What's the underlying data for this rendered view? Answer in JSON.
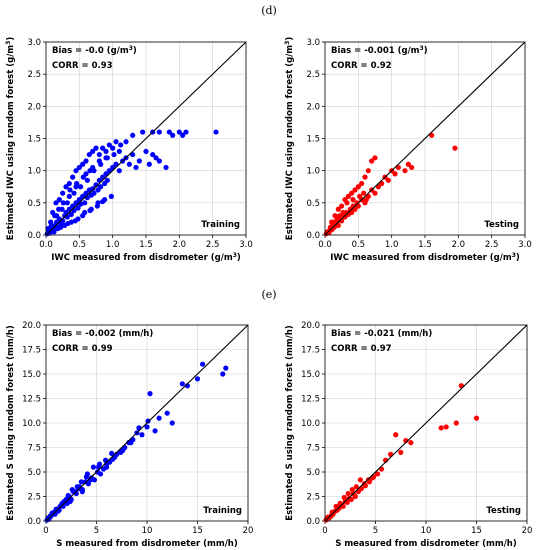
{
  "panel_labels": [
    "(d)",
    "(e)"
  ],
  "chart_data": [
    {
      "type": "scatter",
      "xlabel": "IWC measured from disdrometer (g/m",
      "ylabel": "Estimated IWC using random forest (g/m",
      "unit_sup": "3",
      "unit_close": ")",
      "xlim": [
        0,
        3.0
      ],
      "ylim": [
        0,
        3.0
      ],
      "xticks": [
        "0.0",
        "0.5",
        "1.0",
        "1.5",
        "2.0",
        "2.5",
        "3.0"
      ],
      "yticks": [
        "0.0",
        "0.5",
        "1.0",
        "1.5",
        "2.0",
        "2.5",
        "3.0"
      ],
      "bias_text": "Bias = -0.0 (g/m",
      "corr_text": "CORR = 0.93",
      "tag": "Training",
      "color": "#0000ff",
      "grid": true,
      "one_to_one_line": true,
      "x": [
        0.02,
        0.04,
        0.05,
        0.06,
        0.08,
        0.1,
        0.12,
        0.14,
        0.16,
        0.18,
        0.2,
        0.22,
        0.25,
        0.28,
        0.3,
        0.32,
        0.35,
        0.38,
        0.4,
        0.42,
        0.45,
        0.48,
        0.5,
        0.52,
        0.55,
        0.58,
        0.6,
        0.62,
        0.65,
        0.68,
        0.7,
        0.72,
        0.75,
        0.78,
        0.8,
        0.82,
        0.85,
        0.88,
        0.9,
        0.92,
        0.95,
        1.0,
        1.05,
        1.1,
        1.15,
        1.2,
        1.25,
        1.3,
        1.35,
        1.4,
        1.5,
        1.55,
        1.6,
        1.65,
        1.7,
        1.8,
        1.85,
        1.9,
        2.0,
        2.05,
        2.1,
        2.55,
        0.1,
        0.15,
        0.2,
        0.25,
        0.3,
        0.35,
        0.4,
        0.45,
        0.5,
        0.55,
        0.6,
        0.65,
        0.7,
        0.75,
        0.8,
        0.85,
        0.9,
        0.95,
        1.0,
        1.05,
        0.12,
        0.18,
        0.28,
        0.38,
        0.48,
        0.58,
        0.68,
        0.78,
        0.88,
        0.98,
        0.08,
        0.16,
        0.24,
        0.32,
        0.42,
        0.52,
        0.62,
        0.72,
        0.82,
        0.92,
        1.02,
        1.12,
        0.05,
        0.11,
        0.22,
        0.33,
        0.44,
        0.55,
        0.66,
        0.77,
        0.85,
        0.35,
        0.45,
        0.6,
        0.7,
        0.8,
        0.9,
        1.1,
        1.2,
        1.3,
        1.45,
        1.6,
        1.7,
        0.03,
        0.07,
        0.13,
        0.19,
        0.26,
        0.36,
        0.46,
        0.56,
        0.66
      ],
      "y": [
        0.02,
        0.05,
        0.08,
        0.04,
        0.1,
        0.12,
        0.08,
        0.15,
        0.2,
        0.12,
        0.25,
        0.18,
        0.22,
        0.3,
        0.35,
        0.28,
        0.4,
        0.32,
        0.45,
        0.38,
        0.5,
        0.42,
        0.55,
        0.48,
        0.6,
        0.5,
        0.65,
        0.58,
        0.7,
        0.62,
        0.72,
        0.65,
        0.78,
        0.7,
        0.85,
        0.75,
        0.9,
        0.8,
        0.95,
        0.85,
        1.0,
        1.05,
        1.1,
        1.0,
        1.15,
        1.2,
        1.1,
        1.25,
        1.05,
        1.15,
        1.3,
        1.1,
        1.25,
        1.2,
        1.15,
        1.05,
        1.6,
        1.55,
        1.6,
        1.55,
        1.6,
        1.6,
        0.35,
        0.5,
        0.55,
        0.65,
        0.75,
        0.8,
        0.9,
        1.0,
        1.05,
        1.1,
        1.15,
        1.25,
        1.3,
        1.35,
        1.25,
        1.35,
        1.3,
        1.4,
        1.35,
        1.45,
        0.05,
        0.1,
        0.15,
        0.2,
        0.25,
        0.35,
        0.4,
        0.5,
        0.55,
        0.6,
        0.15,
        0.3,
        0.4,
        0.5,
        0.65,
        0.75,
        0.85,
        1.0,
        1.1,
        1.2,
        1.25,
        1.4,
        0.03,
        0.08,
        0.12,
        0.18,
        0.22,
        0.3,
        0.38,
        0.45,
        0.52,
        0.6,
        0.75,
        0.95,
        1.05,
        1.15,
        1.2,
        1.3,
        1.45,
        1.55,
        1.6,
        1.6,
        1.6,
        0.1,
        0.2,
        0.3,
        0.4,
        0.5,
        0.7,
        0.8,
        0.9,
        1.0
      ]
    },
    {
      "type": "scatter",
      "xlabel": "IWC measured from disdrometer (g/m",
      "ylabel": "Estimated IWC using random forest (g/m",
      "unit_sup": "3",
      "unit_close": ")",
      "xlim": [
        0,
        3.0
      ],
      "ylim": [
        0,
        3.0
      ],
      "xticks": [
        "0.0",
        "0.5",
        "1.0",
        "1.5",
        "2.0",
        "2.5",
        "3.0"
      ],
      "yticks": [
        "0.0",
        "0.5",
        "1.0",
        "1.5",
        "2.0",
        "2.5",
        "3.0"
      ],
      "bias_text": "Bias = -0.001 (g/m",
      "corr_text": "CORR = 0.92",
      "tag": "Testing",
      "color": "#ff0000",
      "grid": true,
      "one_to_one_line": true,
      "x": [
        0.02,
        0.04,
        0.06,
        0.08,
        0.1,
        0.12,
        0.14,
        0.16,
        0.18,
        0.2,
        0.22,
        0.25,
        0.28,
        0.3,
        0.32,
        0.35,
        0.38,
        0.4,
        0.42,
        0.45,
        0.48,
        0.5,
        0.55,
        0.6,
        0.65,
        0.7,
        0.75,
        0.8,
        0.85,
        0.9,
        0.95,
        1.0,
        1.05,
        1.1,
        1.2,
        1.25,
        1.3,
        1.6,
        1.95,
        0.3,
        0.35,
        0.4,
        0.45,
        0.5,
        0.55,
        0.6,
        0.65,
        0.7,
        0.75,
        0.1,
        0.15,
        0.2,
        0.25,
        0.05,
        0.08,
        0.12,
        0.18,
        0.22,
        0.27,
        0.33,
        0.42,
        0.52,
        0.58,
        0.62
      ],
      "y": [
        0.02,
        0.05,
        0.04,
        0.1,
        0.08,
        0.15,
        0.12,
        0.18,
        0.2,
        0.15,
        0.25,
        0.22,
        0.3,
        0.28,
        0.35,
        0.32,
        0.4,
        0.35,
        0.45,
        0.4,
        0.5,
        0.45,
        0.55,
        0.5,
        0.6,
        0.7,
        0.65,
        0.75,
        0.8,
        0.9,
        0.85,
        1.0,
        0.95,
        1.05,
        1.0,
        1.1,
        1.05,
        1.55,
        1.35,
        0.55,
        0.6,
        0.65,
        0.7,
        0.75,
        0.8,
        0.9,
        1.0,
        1.15,
        1.2,
        0.2,
        0.3,
        0.4,
        0.45,
        0.05,
        0.12,
        0.2,
        0.25,
        0.3,
        0.35,
        0.5,
        0.55,
        0.6,
        0.65,
        0.55
      ]
    },
    {
      "type": "scatter",
      "xlabel": "S measured from disdrometer (mm/h)",
      "ylabel": "Estimated S using random forest (mm/h)",
      "unit_sup": "",
      "unit_close": "",
      "xlim": [
        0,
        20
      ],
      "ylim": [
        0,
        20.0
      ],
      "xticks": [
        "0",
        "5",
        "10",
        "15",
        "20"
      ],
      "yticks": [
        "0.0",
        "2.5",
        "5.0",
        "7.5",
        "10.0",
        "12.5",
        "15.0",
        "17.5",
        "20.0"
      ],
      "bias_text": "Bias = -0.002 (mm/h)",
      "corr_text": "CORR = 0.99",
      "tag": "Training",
      "color": "#0000ff",
      "grid": true,
      "one_to_one_line": true,
      "x": [
        0.1,
        0.2,
        0.3,
        0.5,
        0.7,
        0.9,
        1.1,
        1.3,
        1.5,
        1.7,
        1.9,
        2.1,
        2.3,
        2.5,
        2.7,
        3.0,
        3.3,
        3.6,
        3.9,
        4.2,
        4.5,
        4.8,
        5.1,
        5.4,
        5.7,
        6.0,
        6.3,
        6.6,
        7.0,
        7.4,
        7.8,
        8.2,
        8.6,
        9.0,
        9.5,
        10.0,
        10.3,
        10.8,
        11.2,
        12.0,
        12.5,
        13.5,
        14.0,
        15.0,
        15.5,
        17.5,
        17.8,
        0.4,
        0.8,
        1.2,
        1.6,
        2.0,
        2.4,
        2.8,
        3.2,
        3.6,
        4.0,
        4.4,
        5.2,
        6.0,
        6.8,
        7.6,
        8.4,
        9.2,
        10.1,
        3.5,
        4.1,
        4.7,
        5.3,
        5.9,
        6.5,
        0.6,
        1.0,
        1.4,
        1.8,
        2.2,
        2.6,
        3.1
      ],
      "y": [
        0.1,
        0.3,
        0.2,
        0.5,
        0.8,
        0.7,
        1.2,
        1.1,
        1.6,
        1.5,
        2.0,
        1.8,
        2.5,
        2.2,
        3.0,
        2.8,
        3.5,
        3.2,
        4.0,
        3.8,
        4.4,
        4.2,
        5.0,
        4.8,
        5.3,
        5.8,
        6.0,
        6.3,
        6.8,
        7.0,
        7.5,
        8.0,
        8.3,
        9.0,
        8.8,
        9.6,
        13.0,
        9.2,
        10.5,
        11.0,
        10.0,
        14.0,
        13.8,
        14.5,
        16.0,
        15.0,
        15.6,
        0.5,
        0.9,
        1.0,
        1.8,
        2.2,
        2.0,
        3.0,
        3.3,
        3.0,
        4.5,
        4.2,
        5.5,
        5.5,
        6.5,
        7.2,
        8.0,
        9.5,
        10.2,
        4.0,
        4.8,
        5.5,
        5.8,
        6.2,
        6.9,
        0.8,
        1.2,
        1.5,
        2.0,
        2.6,
        3.2,
        3.5
      ]
    },
    {
      "type": "scatter",
      "xlabel": "S measured from disdrometer (mm/h)",
      "ylabel": "Estimated S using random forest (mm/h)",
      "unit_sup": "",
      "unit_close": "",
      "xlim": [
        0,
        20
      ],
      "ylim": [
        0,
        20.0
      ],
      "xticks": [
        "0",
        "5",
        "10",
        "15",
        "20"
      ],
      "yticks": [
        "0.0",
        "2.5",
        "5.0",
        "7.5",
        "10.0",
        "12.5",
        "15.0",
        "17.5",
        "20.0"
      ],
      "bias_text": "Bias = -0.021 (mm/h)",
      "corr_text": "CORR = 0.97",
      "tag": "Testing",
      "color": "#ff0000",
      "grid": true,
      "one_to_one_line": true,
      "x": [
        0.1,
        0.2,
        0.4,
        0.6,
        0.8,
        1.0,
        1.2,
        1.4,
        1.6,
        1.8,
        2.0,
        2.2,
        2.4,
        2.6,
        2.8,
        3.0,
        3.3,
        3.6,
        4.0,
        4.4,
        4.8,
        5.2,
        5.6,
        6.0,
        6.5,
        7.0,
        7.5,
        8.0,
        8.5,
        11.5,
        12.0,
        13.0,
        13.5,
        15.0,
        0.3,
        0.7,
        1.1,
        1.5,
        1.9,
        2.3,
        2.7,
        3.1,
        3.5,
        3.9,
        4.3,
        4.7
      ],
      "y": [
        0.1,
        0.3,
        0.3,
        0.5,
        0.7,
        1.0,
        1.1,
        1.3,
        1.6,
        1.5,
        2.0,
        1.9,
        2.3,
        2.2,
        2.8,
        2.5,
        3.0,
        3.3,
        3.6,
        4.0,
        4.5,
        4.8,
        5.3,
        6.2,
        6.8,
        8.8,
        7.0,
        8.2,
        8.0,
        9.5,
        9.6,
        10.0,
        13.8,
        10.5,
        0.4,
        0.9,
        1.5,
        1.8,
        2.4,
        2.8,
        3.2,
        3.5,
        4.2,
        3.8,
        4.2,
        4.4
      ]
    }
  ]
}
